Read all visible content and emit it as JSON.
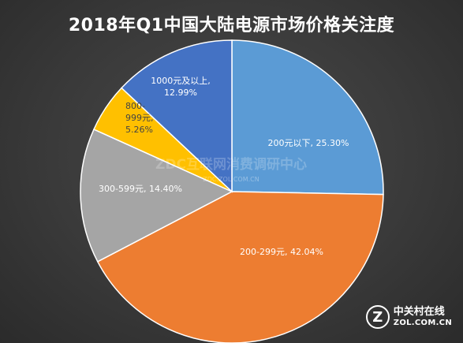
{
  "chart_data": {
    "type": "pie",
    "title": "2018年Q1中国大陆电源市场价格关注度",
    "slices": [
      {
        "label": "200元以下",
        "value": 25.3,
        "value_text": "25.30%",
        "color": "#5b9bd5"
      },
      {
        "label": "200-299元",
        "value": 42.04,
        "value_text": "42.04%",
        "color": "#ed7d31"
      },
      {
        "label": "300-599元",
        "value": 14.4,
        "value_text": "14.40%",
        "color": "#a5a5a5"
      },
      {
        "label": "800-999元",
        "value": 5.26,
        "value_text": "5.26%",
        "color": "#ffc000"
      },
      {
        "label": "1000元及以上",
        "value": 12.99,
        "value_text": "12.99%",
        "color": "#4472c4"
      }
    ]
  },
  "watermark": {
    "main": "ZDC互联网消费调研中心",
    "sub": "ZDC.ZOL.COM.CN"
  },
  "logo": {
    "mark": "Z",
    "cn": "中关村在线",
    "en": "ZOL.COM.CN"
  }
}
